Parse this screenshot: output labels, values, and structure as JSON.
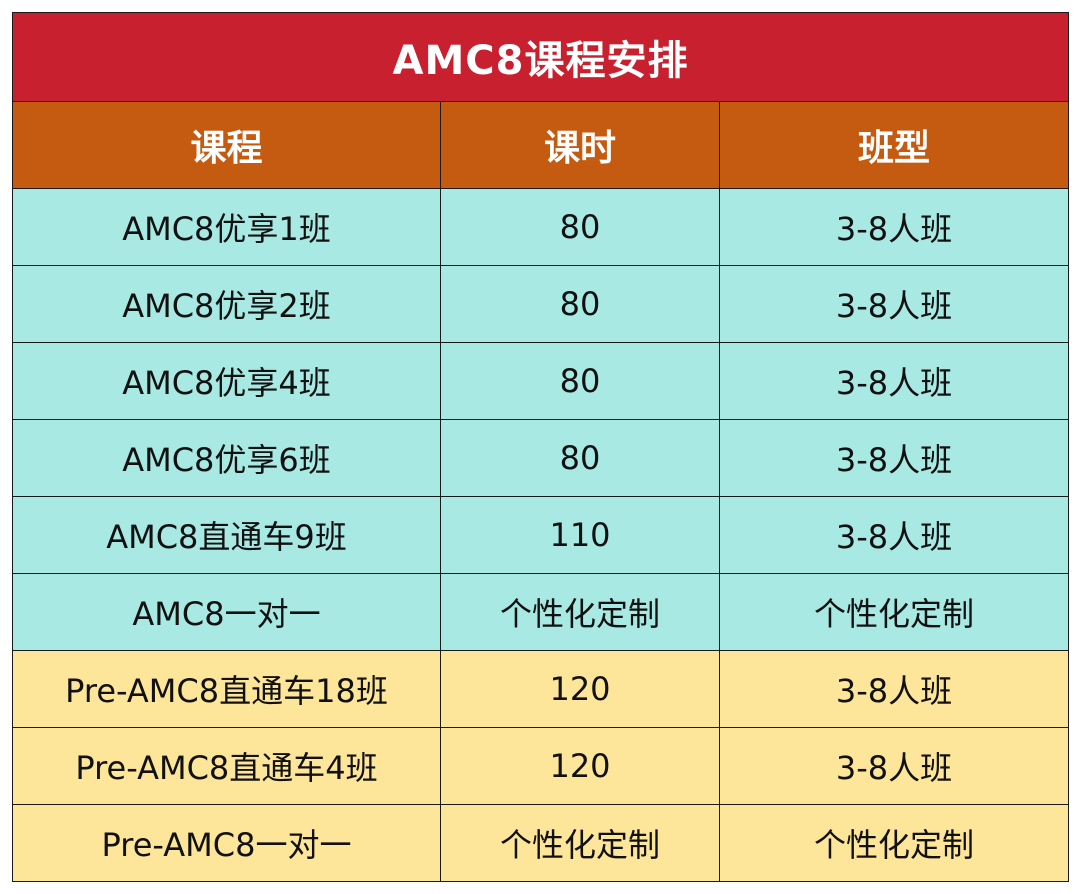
{
  "table": {
    "title": "AMC8课程安排",
    "headers": [
      "课程",
      "课时",
      "班型"
    ],
    "rows": [
      {
        "course": "AMC8优享1班",
        "hours": "80",
        "class_type": "3-8人班",
        "color": "#a8e9e3"
      },
      {
        "course": "AMC8优享2班",
        "hours": "80",
        "class_type": "3-8人班",
        "color": "#a8e9e3"
      },
      {
        "course": "AMC8优享4班",
        "hours": "80",
        "class_type": "3-8人班",
        "color": "#a8e9e3"
      },
      {
        "course": "AMC8优享6班",
        "hours": "80",
        "class_type": "3-8人班",
        "color": "#a8e9e3"
      },
      {
        "course": "AMC8直通车9班",
        "hours": "110",
        "class_type": "3-8人班",
        "color": "#a8e9e3"
      },
      {
        "course": "AMC8一对一",
        "hours": "个性化定制",
        "class_type": "个性化定制",
        "color": "#a8e9e3"
      },
      {
        "course": "Pre-AMC8直通车18班",
        "hours": "120",
        "class_type": "3-8人班",
        "color": "#fde59a"
      },
      {
        "course": "Pre-AMC8直通车4班",
        "hours": "120",
        "class_type": "3-8人班",
        "color": "#fde59a"
      },
      {
        "course": "Pre-AMC8一对一",
        "hours": "个性化定制",
        "class_type": "个性化定制",
        "color": "#fde59a"
      }
    ]
  },
  "colors": {
    "title_bg": "#c8202f",
    "header_bg": "#c55a11",
    "group1_bg": "#a8e9e3",
    "group2_bg": "#fde59a"
  }
}
